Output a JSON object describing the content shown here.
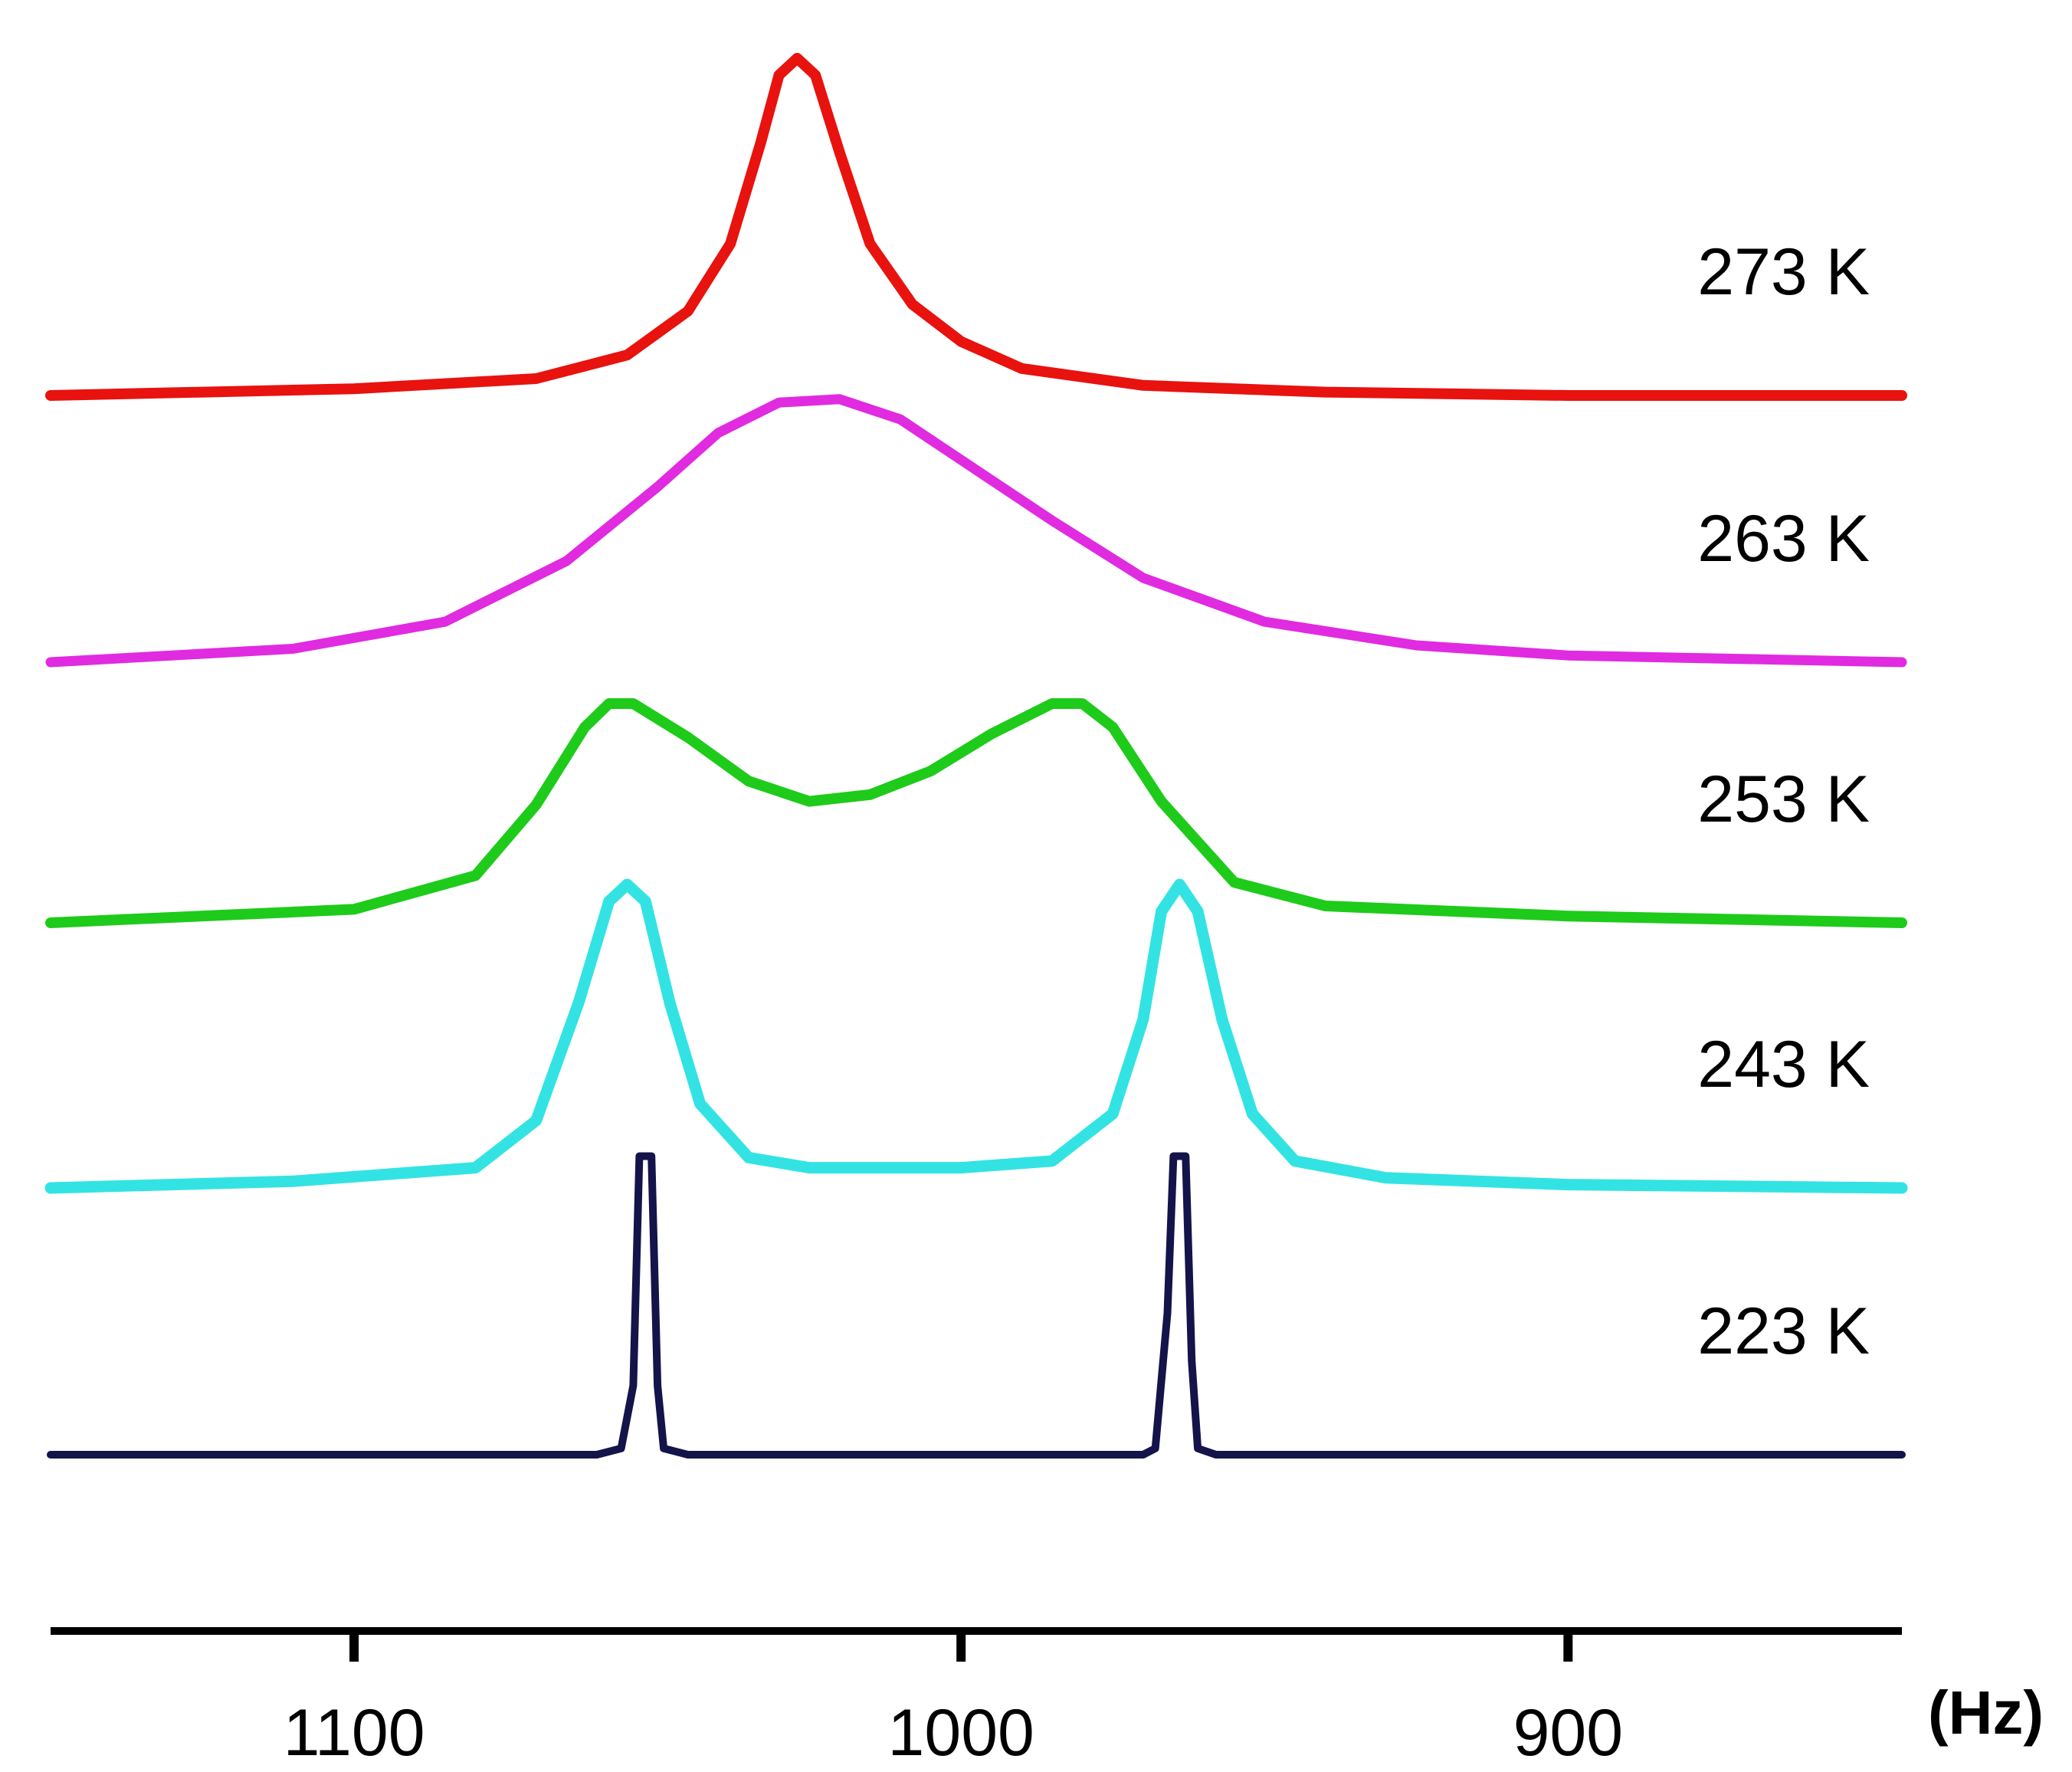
{
  "chart_data": {
    "type": "line",
    "title": "",
    "xlabel": "",
    "x_unit": "(Hz)",
    "xlim": [
      1150,
      845
    ],
    "x_ticks": [
      1100,
      1000,
      900
    ],
    "x_tick_labels": [
      "1100",
      "1000",
      "900"
    ],
    "series": [
      {
        "name": "273 K",
        "color": "#e8120e",
        "shape": "single peak",
        "points": [
          [
            1150,
            0
          ],
          [
            1100,
            0.02
          ],
          [
            1070,
            0.05
          ],
          [
            1055,
            0.12
          ],
          [
            1045,
            0.25
          ],
          [
            1038,
            0.45
          ],
          [
            1033,
            0.75
          ],
          [
            1030,
            0.95
          ],
          [
            1027,
            1.0
          ],
          [
            1024,
            0.95
          ],
          [
            1020,
            0.72
          ],
          [
            1015,
            0.45
          ],
          [
            1008,
            0.27
          ],
          [
            1000,
            0.16
          ],
          [
            990,
            0.08
          ],
          [
            970,
            0.03
          ],
          [
            940,
            0.01
          ],
          [
            900,
            0
          ],
          [
            845,
            0
          ]
        ]
      },
      {
        "name": "263 K",
        "color": "#e02be0",
        "shape": "broad single peak",
        "points": [
          [
            1150,
            0
          ],
          [
            1110,
            0.04
          ],
          [
            1085,
            0.12
          ],
          [
            1065,
            0.3
          ],
          [
            1050,
            0.52
          ],
          [
            1040,
            0.68
          ],
          [
            1030,
            0.77
          ],
          [
            1020,
            0.78
          ],
          [
            1010,
            0.72
          ],
          [
            1000,
            0.6
          ],
          [
            985,
            0.42
          ],
          [
            970,
            0.25
          ],
          [
            950,
            0.12
          ],
          [
            925,
            0.05
          ],
          [
            900,
            0.02
          ],
          [
            845,
            0
          ]
        ]
      },
      {
        "name": "253 K",
        "color": "#1ecb1a",
        "shape": "two broadened peaks",
        "points": [
          [
            1150,
            0
          ],
          [
            1100,
            0.04
          ],
          [
            1080,
            0.14
          ],
          [
            1070,
            0.35
          ],
          [
            1062,
            0.58
          ],
          [
            1058,
            0.65
          ],
          [
            1054,
            0.65
          ],
          [
            1045,
            0.55
          ],
          [
            1035,
            0.42
          ],
          [
            1025,
            0.36
          ],
          [
            1015,
            0.38
          ],
          [
            1005,
            0.45
          ],
          [
            995,
            0.56
          ],
          [
            985,
            0.65
          ],
          [
            980,
            0.65
          ],
          [
            975,
            0.58
          ],
          [
            967,
            0.36
          ],
          [
            955,
            0.12
          ],
          [
            940,
            0.05
          ],
          [
            900,
            0.02
          ],
          [
            845,
            0
          ]
        ]
      },
      {
        "name": "243 K",
        "color": "#33e3e3",
        "shape": "two sharpening peaks",
        "points": [
          [
            1150,
            0
          ],
          [
            1110,
            0.02
          ],
          [
            1080,
            0.06
          ],
          [
            1070,
            0.2
          ],
          [
            1063,
            0.55
          ],
          [
            1058,
            0.85
          ],
          [
            1055,
            0.9
          ],
          [
            1052,
            0.85
          ],
          [
            1048,
            0.55
          ],
          [
            1043,
            0.25
          ],
          [
            1035,
            0.09
          ],
          [
            1025,
            0.06
          ],
          [
            1000,
            0.06
          ],
          [
            985,
            0.08
          ],
          [
            975,
            0.22
          ],
          [
            970,
            0.5
          ],
          [
            967,
            0.82
          ],
          [
            964,
            0.9
          ],
          [
            961,
            0.82
          ],
          [
            957,
            0.5
          ],
          [
            952,
            0.22
          ],
          [
            945,
            0.08
          ],
          [
            930,
            0.03
          ],
          [
            900,
            0.01
          ],
          [
            845,
            0
          ]
        ]
      },
      {
        "name": "223 K",
        "color": "#14144a",
        "shape": "two sharp lines",
        "points": [
          [
            1150,
            0
          ],
          [
            1060,
            0
          ],
          [
            1056,
            0.02
          ],
          [
            1054,
            0.22
          ],
          [
            1053,
            0.95
          ],
          [
            1051,
            0.95
          ],
          [
            1050,
            0.22
          ],
          [
            1049,
            0.02
          ],
          [
            1045,
            0
          ],
          [
            970,
            0
          ],
          [
            968,
            0.02
          ],
          [
            966,
            0.45
          ],
          [
            965,
            0.95
          ],
          [
            963,
            0.95
          ],
          [
            962,
            0.3
          ],
          [
            961,
            0.02
          ],
          [
            958,
            0
          ],
          [
            845,
            0
          ]
        ]
      }
    ]
  }
}
